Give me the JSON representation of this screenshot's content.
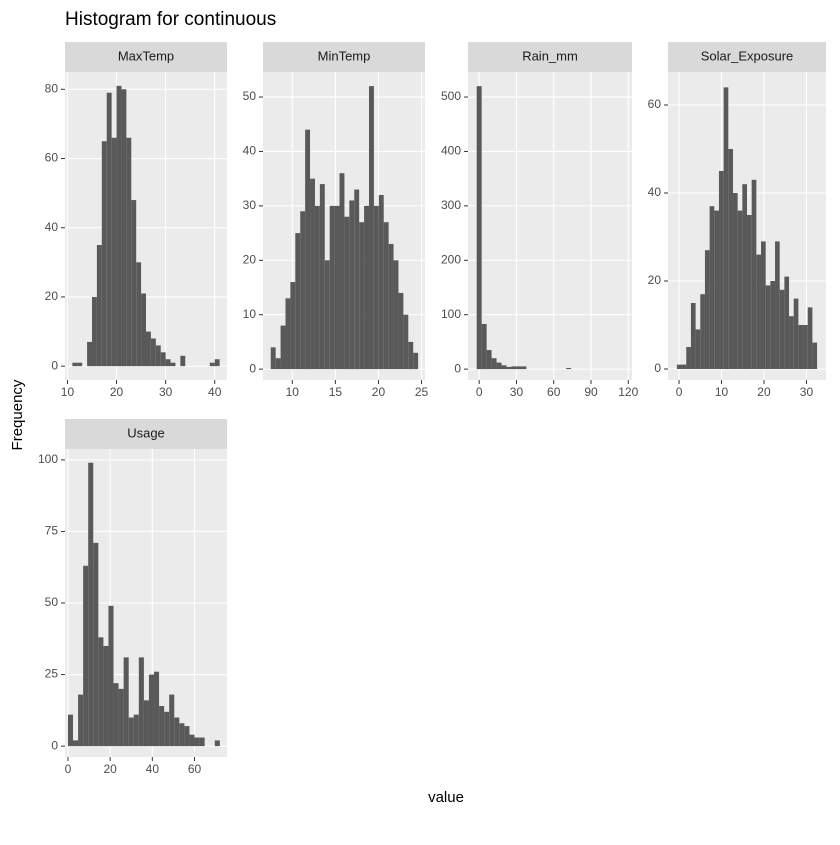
{
  "title": "Histogram for continuous",
  "x_label": "value",
  "y_label": "Frequency",
  "chart_data": [
    {
      "type": "histogram",
      "title": "MaxTemp",
      "color": "#595959",
      "grid": true,
      "bins": [
        11,
        12,
        13,
        14,
        15,
        16,
        17,
        18,
        19,
        20,
        21,
        22,
        23,
        24,
        25,
        26,
        27,
        28,
        29,
        30,
        31,
        32,
        33,
        34,
        35,
        36,
        37,
        38,
        39,
        40,
        41
      ],
      "counts": [
        1,
        1,
        0,
        7,
        20,
        35,
        65,
        79,
        66,
        81,
        80,
        66,
        48,
        30,
        21,
        10,
        8,
        6,
        4,
        2,
        1,
        0,
        3,
        0,
        0,
        0,
        0,
        0,
        1,
        2
      ],
      "xlim": [
        9.5,
        42.5
      ],
      "ylim": [
        -4,
        85
      ],
      "xticks": [
        10,
        20,
        30,
        40
      ],
      "yticks": [
        0,
        20,
        40,
        60,
        80
      ]
    },
    {
      "type": "histogram",
      "title": "MinTemp",
      "color": "#595959",
      "grid": true,
      "bins": [
        7.5,
        8.07,
        8.64,
        9.21,
        9.78,
        10.35,
        10.92,
        11.49,
        12.06,
        12.63,
        13.2,
        13.77,
        14.34,
        14.91,
        15.48,
        16.05,
        16.62,
        17.19,
        17.76,
        18.33,
        18.9,
        19.47,
        20.04,
        20.61,
        21.18,
        21.75,
        22.32,
        22.89,
        23.46,
        24.03,
        24.6
      ],
      "counts": [
        4,
        2,
        8,
        13,
        16,
        25,
        29,
        44,
        35,
        30,
        34,
        20,
        30,
        30,
        36,
        28,
        31,
        33,
        27,
        30,
        52,
        30,
        32,
        27,
        23,
        20,
        14,
        10,
        5,
        3
      ],
      "xlim": [
        6.6,
        25.4
      ],
      "ylim": [
        -2,
        54.6
      ],
      "xticks": [
        10,
        15,
        20,
        25
      ],
      "yticks": [
        0,
        10,
        20,
        30,
        40,
        50
      ]
    },
    {
      "type": "histogram",
      "title": "Rain_mm",
      "color": "#595959",
      "grid": true,
      "bins": [
        -2,
        2,
        6,
        10,
        14,
        18,
        22,
        26,
        30,
        34,
        38,
        42,
        46,
        50,
        54,
        58,
        62,
        66,
        70,
        74,
        78,
        82,
        86,
        90,
        94,
        98,
        102,
        106,
        110,
        114,
        118
      ],
      "counts": [
        520,
        83,
        35,
        20,
        12,
        7,
        4,
        5,
        5,
        5,
        0,
        0,
        0,
        0,
        0,
        0,
        0,
        0,
        2,
        0,
        0,
        0,
        0,
        0,
        0,
        0,
        0,
        0,
        0,
        0
      ],
      "xlim": [
        -9,
        123
      ],
      "ylim": [
        -20,
        546
      ],
      "xticks": [
        0,
        30,
        60,
        90,
        120
      ],
      "yticks": [
        0,
        100,
        200,
        300,
        400,
        500
      ]
    },
    {
      "type": "histogram",
      "title": "Solar_Exposure",
      "color": "#595959",
      "grid": true,
      "bins": [
        -0.5,
        0.6,
        1.7,
        2.8,
        3.9,
        5,
        6.1,
        7.2,
        8.3,
        9.4,
        10.5,
        11.6,
        12.7,
        13.8,
        14.9,
        16,
        17.1,
        18.2,
        19.3,
        20.4,
        21.5,
        22.6,
        23.7,
        24.8,
        25.9,
        27,
        28.1,
        29.2,
        30.3,
        31.4,
        32.5
      ],
      "counts": [
        1,
        1,
        5,
        15,
        9,
        17,
        27,
        37,
        36,
        45,
        64,
        50,
        40,
        36,
        42,
        35,
        43,
        26,
        29,
        19,
        20,
        29,
        18,
        21,
        12,
        16,
        10,
        10,
        14,
        6
      ],
      "xlim": [
        -2.6,
        34.6
      ],
      "ylim": [
        -2.5,
        67.5
      ],
      "xticks": [
        0,
        10,
        20,
        30
      ],
      "yticks": [
        0,
        20,
        40,
        60
      ]
    },
    {
      "type": "histogram",
      "title": "Usage",
      "color": "#595959",
      "grid": true,
      "bins": [
        0,
        2.4,
        4.8,
        7.2,
        9.6,
        12,
        14.4,
        16.8,
        19.2,
        21.6,
        24,
        26.4,
        28.8,
        31.2,
        33.6,
        36,
        38.4,
        40.8,
        43.2,
        45.6,
        48,
        50.4,
        52.8,
        55.2,
        57.6,
        60,
        62.4,
        64.8,
        67.2,
        69.6,
        72
      ],
      "counts": [
        11,
        2,
        18,
        63,
        99,
        71,
        38,
        35,
        49,
        22,
        20,
        31,
        10,
        11,
        31,
        16,
        25,
        26,
        14,
        12,
        18,
        10,
        8,
        7,
        4,
        3,
        3,
        0,
        0,
        2
      ],
      "xlim": [
        -1.4,
        75.4
      ],
      "ylim": [
        -3.8,
        103.8
      ],
      "xticks": [
        0,
        20,
        40,
        60
      ],
      "yticks": [
        0,
        25,
        50,
        75,
        100
      ]
    }
  ]
}
